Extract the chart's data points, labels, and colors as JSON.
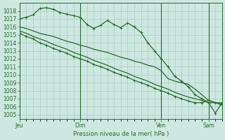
{
  "bg_color": "#cce8e0",
  "grid_color": "#a8ccc4",
  "line_color": "#2a6a30",
  "xlabel": "Pression niveau de la mer( hPa )",
  "ylim": [
    1004.5,
    1019.0
  ],
  "yticks": [
    1005,
    1006,
    1007,
    1008,
    1009,
    1010,
    1011,
    1012,
    1013,
    1014,
    1015,
    1016,
    1017,
    1018
  ],
  "xtick_labels": [
    "Jeu",
    "Dim",
    "Ven",
    "Sam"
  ],
  "xtick_positions": [
    0,
    9,
    21,
    28
  ],
  "vline_positions": [
    0,
    9,
    21,
    28
  ],
  "series": [
    {
      "y": [
        1017.0,
        1017.2,
        1017.5,
        1018.3,
        1018.4,
        1018.2,
        1017.8,
        1017.6,
        1017.4,
        1017.2,
        1016.3,
        1015.8,
        1016.2,
        1016.8,
        1016.3,
        1015.9,
        1016.5,
        1016.0,
        1015.3,
        1014.0,
        1013.0,
        1012.0,
        1011.0,
        1009.8,
        1009.2,
        1008.5,
        1007.5,
        1007.0,
        1006.5,
        1005.2,
        1006.5
      ],
      "marker": "+"
    },
    {
      "y": [
        1016.0,
        1015.8,
        1015.5,
        1015.2,
        1015.0,
        1014.8,
        1014.5,
        1014.2,
        1014.0,
        1013.7,
        1013.5,
        1013.2,
        1013.0,
        1012.8,
        1012.5,
        1012.2,
        1012.0,
        1011.7,
        1011.5,
        1011.2,
        1011.0,
        1010.5,
        1009.5,
        1009.2,
        1009.0,
        1008.8,
        1008.2,
        1007.5,
        1006.8,
        1006.5,
        1006.5
      ],
      "marker": null
    },
    {
      "y": [
        1015.5,
        1015.2,
        1014.8,
        1014.5,
        1014.2,
        1013.8,
        1013.5,
        1013.2,
        1012.8,
        1012.5,
        1012.2,
        1011.8,
        1011.5,
        1011.2,
        1010.8,
        1010.5,
        1010.2,
        1009.8,
        1009.5,
        1009.2,
        1008.8,
        1008.5,
        1008.2,
        1007.8,
        1007.5,
        1007.2,
        1007.0,
        1006.8,
        1006.5,
        1006.5,
        1006.2
      ],
      "marker": null
    },
    {
      "y": [
        1015.2,
        1014.8,
        1014.5,
        1014.0,
        1013.7,
        1013.3,
        1013.0,
        1012.7,
        1012.3,
        1012.0,
        1011.7,
        1011.3,
        1011.0,
        1010.7,
        1010.3,
        1010.0,
        1009.7,
        1009.3,
        1009.0,
        1008.7,
        1008.3,
        1008.0,
        1007.7,
        1007.3,
        1007.0,
        1006.7,
        1006.5,
        1006.5,
        1006.8,
        1006.5,
        1006.3
      ],
      "marker": "+"
    }
  ],
  "linewidth": 0.9,
  "markersize": 3.5,
  "markeredgewidth": 0.7,
  "ylabel_fontsize": 5.5,
  "xlabel_fontsize": 6.0,
  "xtick_fontsize": 5.5
}
